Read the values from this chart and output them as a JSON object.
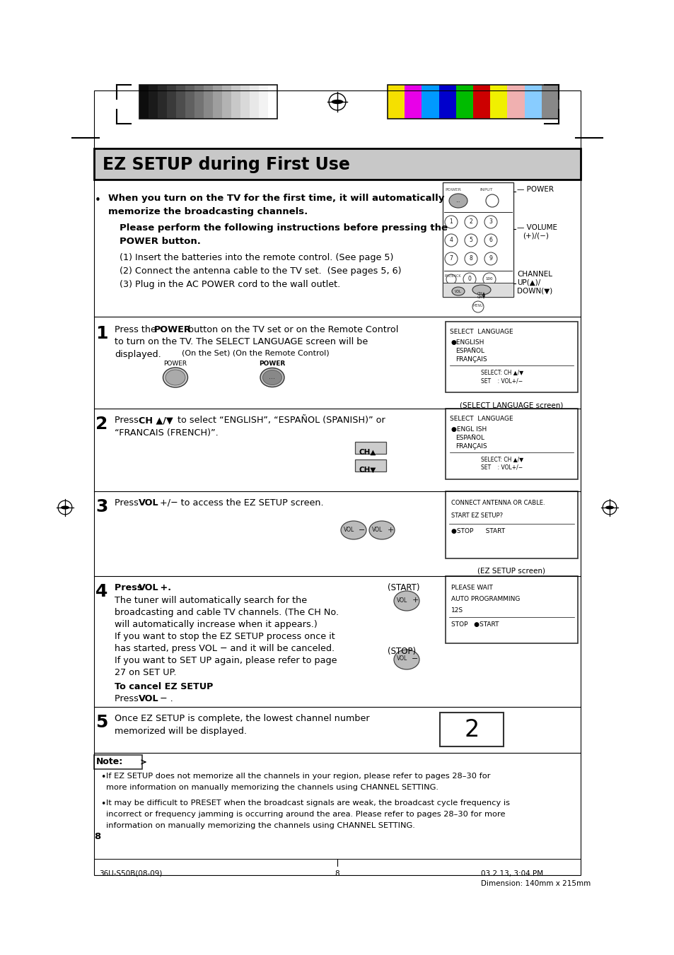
{
  "page_bg": "#ffffff",
  "title": "EZ SETUP during First Use",
  "title_bg": "#c8c8c8",
  "title_border": "#000000",
  "grayscale_colors": [
    "#0d0d0d",
    "#1a1a1a",
    "#292929",
    "#3a3a3a",
    "#4d4d4d",
    "#606060",
    "#737373",
    "#888888",
    "#9e9e9e",
    "#b3b3b3",
    "#c8c8c8",
    "#d9d9d9",
    "#e8e8e8",
    "#f3f3f3",
    "#ffffff"
  ],
  "color_bars": [
    "#f5e000",
    "#e800e8",
    "#0099ff",
    "#0000cc",
    "#00bb00",
    "#cc0000",
    "#f0f000",
    "#f0b0b0",
    "#88ccff",
    "#888888"
  ],
  "bullet_line1a": "When you turn on the TV for the first time, it will automatically",
  "bullet_line1b": "memorize the broadcasting channels.",
  "bullet_line2a": "Please perform the following instructions before pressing the",
  "bullet_line2b": "POWER button.",
  "bullet_line3": "(1) Insert the batteries into the remote control. (See page 5)",
  "bullet_line4": "(2) Connect the antenna cable to the TV set.  (See pages 5, 6)",
  "bullet_line5": "(3) Plug in the AC POWER cord to the wall outlet.",
  "step1_text1": "Press the ",
  "step1_text1b": "POWER",
  "step1_text1c": " button on the TV set or on the Remote Control",
  "step1_text2": "to turn on the TV. The SELECT LANGUAGE screen will be",
  "step1_text3": "displayed.",
  "step1_sub": "(On the Set) (On the Remote Control)",
  "step2_text": "Press CH ▲/▼ to select “ENGLISH”, “ESPAÑOL (SPANISH)” or",
  "step2_text2": "“FRANCAIS (FRENCH)”.",
  "step3_text1": "Press ",
  "step3_text1b": "VOL",
  "step3_text1c": " +/− to access the EZ SETUP screen.",
  "step4_text1": "Press ",
  "step4_text1b": "VOL",
  "step4_text1c": " +.",
  "step4_body": "The tuner will automatically search for the\nbroadcasting and cable TV channels. (The CH No.\nwill automatically increase when it appears.)\nIf you want to stop the EZ SETUP process once it\nhas started, press VOL − and it will be canceled.\nIf you want to SET UP again, please refer to page\n27 on SET UP.",
  "step4_cancel_bold": "To cancel EZ SETUP",
  "step4_cancel": "Press VOL − .",
  "step5_text": "Once EZ SETUP is complete, the lowest channel number\nmemorized will be displayed.",
  "note_header": "Note:",
  "note1": "If EZ SETUP does not memorize all the channels in your region, please refer to pages 28–30 for\nmore information on manually memorizing the channels using CHANNEL SETTING.",
  "note2": "It may be difficult to PRESET when the broadcast signals are weak, the broadcast cycle frequency is\nincorrect or frequency jamming is occurring around the area. Please refer to pages 28–30 for more\ninformation on manually memorizing the channels using CHANNEL SETTING.",
  "page_num": "8",
  "footer_left": "36U-S50B(08-09)",
  "footer_center": "8",
  "footer_right": "03.2.13, 3:04 PM",
  "footer_dim": "Dimension: 140mm x 215mm"
}
